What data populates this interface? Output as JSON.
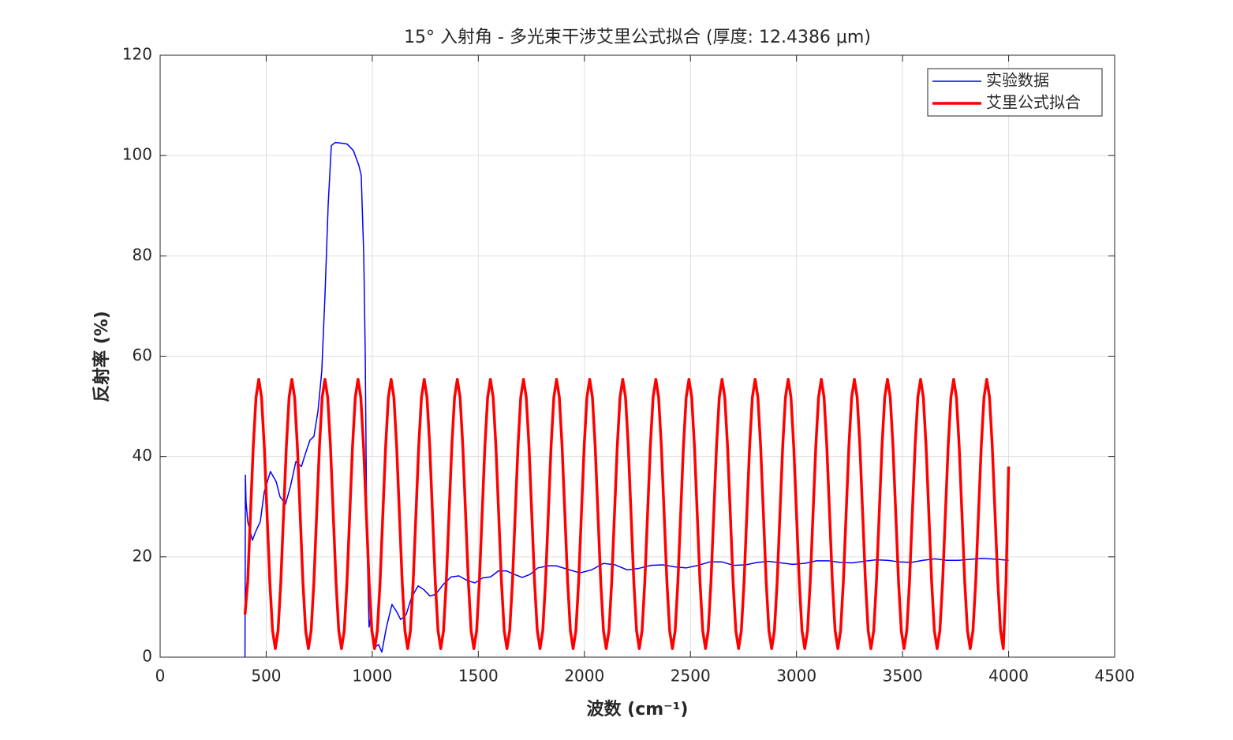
{
  "chart_data": {
    "type": "line",
    "title": "15° 入射角 - 多光束干涉艾里公式拟合 (厚度: 12.4386 μm)",
    "xlabel": "波数 (cm⁻¹)",
    "ylabel": "反射率 (%)",
    "xlim": [
      0,
      4500
    ],
    "xticks": [
      0,
      500,
      1000,
      1500,
      2000,
      2500,
      3000,
      3500,
      4000,
      4500
    ],
    "ylim": [
      0,
      120
    ],
    "yticks": [
      0,
      20,
      40,
      60,
      80,
      100,
      120
    ],
    "grid": true,
    "legend": "upper right",
    "series": [
      {
        "name": "实验数据",
        "color": "#0000ff",
        "width": 1.5,
        "x": [
          400,
          402,
          405,
          413,
          435,
          450,
          472,
          491,
          520,
          547,
          565,
          591,
          614,
          640,
          666,
          688,
          707,
          725,
          744,
          762,
          777,
          792,
          807,
          826,
          850,
          881,
          911,
          937,
          948,
          960,
          967,
          974,
          985,
          993,
          1012,
          1030,
          1045,
          1067,
          1093,
          1116,
          1134,
          1160,
          1186,
          1216,
          1242,
          1272,
          1298,
          1335,
          1372,
          1409,
          1447,
          1484,
          1521,
          1558,
          1595,
          1633,
          1670,
          1707,
          1744,
          1781,
          1830,
          1867,
          1923,
          1979,
          2034,
          2090,
          2146,
          2202,
          2257,
          2313,
          2369,
          2425,
          2481,
          2536,
          2592,
          2648,
          2704,
          2760,
          2815,
          2871,
          2927,
          2983,
          3038,
          3094,
          3150,
          3206,
          3262,
          3317,
          3373,
          3429,
          3485,
          3541,
          3596,
          3652,
          3708,
          3764,
          3819,
          3875,
          3950,
          4000
        ],
        "values": [
          0,
          36.3,
          31,
          27,
          23.3,
          25,
          27,
          33,
          37,
          35,
          32,
          30.5,
          34,
          39,
          38,
          41,
          43.3,
          44,
          49,
          57,
          72,
          90,
          102,
          102.6,
          102.5,
          102.3,
          101,
          98,
          96,
          80,
          60,
          25,
          6,
          8,
          2,
          2.5,
          1,
          6,
          10.5,
          9,
          7.5,
          8.5,
          12,
          14.2,
          13.5,
          12.2,
          12.5,
          14.5,
          16,
          16.2,
          15.3,
          14.8,
          15.8,
          16,
          17.2,
          17.2,
          16.5,
          15.9,
          16.5,
          17.8,
          18.2,
          18.2,
          17.5,
          16.8,
          17.4,
          18.7,
          18.4,
          17.4,
          17.7,
          18.3,
          18.4,
          18,
          17.8,
          18.3,
          19,
          19,
          18.3,
          18.4,
          18.9,
          19.1,
          18.8,
          18.5,
          18.7,
          19.2,
          19.2,
          18.9,
          18.8,
          19.1,
          19.4,
          19.3,
          19,
          18.9,
          19.3,
          19.6,
          19.3,
          19.3,
          19.5,
          19.7,
          19.5,
          19.3
        ]
      },
      {
        "name": "艾里公式拟合",
        "color": "#ff0000",
        "width": 3.5,
        "x": [
          400,
          413,
          426,
          439,
          452,
          465,
          478,
          491,
          504,
          517,
          530,
          543,
          556,
          569,
          582,
          595,
          608,
          621,
          634,
          647,
          660,
          673,
          686,
          699,
          712,
          725,
          738,
          751,
          764,
          777,
          790,
          803,
          816,
          829,
          842,
          855,
          868,
          881,
          894,
          907,
          920,
          933,
          946,
          959,
          972,
          985,
          998,
          1011,
          1024,
          1037,
          1050,
          1063,
          1076,
          1089,
          1102,
          1115,
          1128,
          1141,
          1154,
          1167,
          1180,
          1193,
          1206,
          1219,
          1232,
          1245,
          1258,
          1271,
          1284,
          1297,
          1310,
          1323,
          1336,
          1349,
          1362,
          1375,
          1388,
          1401,
          1414,
          1427,
          1440,
          1453,
          1466,
          1479,
          1492,
          1505,
          1518,
          1531,
          1544,
          1557,
          1570,
          1583,
          1596,
          1609,
          1622,
          1635,
          1648,
          1661,
          1674,
          1687,
          1700,
          1713,
          1726,
          1739,
          1752,
          1765,
          1778,
          1791,
          1804,
          1817,
          1830,
          1843,
          1856,
          1869,
          1882,
          1895,
          1908,
          1921,
          1934,
          1947,
          1960,
          1973,
          1986,
          1999,
          2012,
          2025,
          2038,
          2051,
          2064,
          2077,
          2090,
          2103,
          2116,
          2129,
          2142,
          2155,
          2168,
          2181,
          2194,
          2207,
          2220,
          2233,
          2246,
          2259,
          2272,
          2285,
          2298,
          2311,
          2324,
          2337,
          2350,
          2363,
          2376,
          2389,
          2402,
          2415,
          2428,
          2441,
          2454,
          2467,
          2480,
          2493,
          2506,
          2519,
          2532,
          2545,
          2558,
          2571,
          2584,
          2597,
          2610,
          2623,
          2636,
          2649,
          2662,
          2675,
          2688,
          2701,
          2714,
          2727,
          2740,
          2753,
          2766,
          2779,
          2792,
          2805,
          2818,
          2831,
          2844,
          2857,
          2870,
          2883,
          2896,
          2909,
          2922,
          2935,
          2948,
          2961,
          2974,
          2987,
          3000,
          3013,
          3026,
          3039,
          3052,
          3065,
          3078,
          3091,
          3104,
          3117,
          3130,
          3143,
          3156,
          3169,
          3182,
          3195,
          3208,
          3221,
          3234,
          3247,
          3260,
          3273,
          3286,
          3299,
          3312,
          3325,
          3338,
          3351,
          3364,
          3377,
          3390,
          3403,
          3416,
          3429,
          3442,
          3455,
          3468,
          3481,
          3494,
          3507,
          3520,
          3533,
          3546,
          3559,
          3572,
          3585,
          3598,
          3611,
          3624,
          3637,
          3650,
          3663,
          3676,
          3689,
          3702,
          3715,
          3728,
          3741,
          3754,
          3767,
          3780,
          3793,
          3806,
          3819,
          3832,
          3845,
          3858,
          3871,
          3884,
          3897,
          3910,
          3923,
          3936,
          3949,
          3962,
          3975,
          3988,
          4000
        ],
        "values": [
          8.5,
          15.1,
          28.6,
          42.0,
          51.8,
          55.4,
          51.8,
          42.0,
          28.6,
          15.1,
          5.3,
          1.7,
          5.3,
          15.1,
          28.6,
          42.0,
          51.8,
          55.4,
          51.8,
          42.0,
          28.6,
          15.1,
          5.3,
          1.7,
          5.3,
          15.1,
          28.6,
          42.0,
          51.8,
          55.4,
          51.8,
          42.0,
          28.6,
          15.1,
          5.3,
          1.7,
          5.3,
          15.1,
          28.6,
          42.0,
          51.8,
          55.4,
          51.8,
          42.0,
          28.6,
          15.1,
          5.3,
          1.7,
          5.3,
          15.1,
          28.6,
          42.0,
          51.8,
          55.4,
          51.8,
          42.0,
          28.6,
          15.1,
          5.3,
          1.7,
          5.3,
          15.1,
          28.6,
          42.0,
          51.8,
          55.4,
          51.8,
          42.0,
          28.6,
          15.1,
          5.3,
          1.7,
          5.3,
          15.1,
          28.6,
          42.0,
          51.8,
          55.4,
          51.8,
          42.0,
          28.6,
          15.1,
          5.3,
          1.7,
          5.3,
          15.1,
          28.6,
          42.0,
          51.8,
          55.4,
          51.8,
          42.0,
          28.6,
          15.1,
          5.3,
          1.7,
          5.3,
          15.1,
          28.6,
          42.0,
          51.8,
          55.4,
          51.8,
          42.0,
          28.6,
          15.1,
          5.3,
          1.7,
          5.3,
          15.1,
          28.6,
          42.0,
          51.8,
          55.4,
          51.8,
          42.0,
          28.6,
          15.1,
          5.3,
          1.7,
          5.3,
          15.1,
          28.6,
          42.0,
          51.8,
          55.4,
          51.8,
          42.0,
          28.6,
          15.1,
          5.3,
          1.7,
          5.3,
          15.1,
          28.6,
          42.0,
          51.8,
          55.4,
          51.8,
          42.0,
          28.6,
          15.1,
          5.3,
          1.7,
          5.3,
          15.1,
          28.6,
          42.0,
          51.8,
          55.4,
          51.8,
          42.0,
          28.6,
          15.1,
          5.3,
          1.7,
          5.3,
          15.1,
          28.6,
          42.0,
          51.8,
          55.4,
          51.8,
          42.0,
          28.6,
          15.1,
          5.3,
          1.7,
          5.3,
          15.1,
          28.6,
          42.0,
          51.8,
          55.4,
          51.8,
          42.0,
          28.6,
          15.1,
          5.3,
          1.7,
          5.3,
          15.1,
          28.6,
          42.0,
          51.8,
          55.4,
          51.8,
          42.0,
          28.6,
          15.1,
          5.3,
          1.7,
          5.3,
          15.1,
          28.6,
          42.0,
          51.8,
          55.4,
          51.8,
          42.0,
          28.6,
          15.1,
          5.3,
          1.7,
          5.3,
          15.1,
          28.6,
          42.0,
          51.8,
          55.4,
          51.8,
          42.0,
          28.6,
          15.1,
          5.3,
          1.7,
          5.3,
          15.1,
          28.6,
          42.0,
          51.8,
          55.4,
          51.8,
          42.0,
          28.6,
          15.1,
          5.3,
          1.7,
          5.3,
          15.1,
          28.6,
          42.0,
          51.8,
          55.4,
          51.8,
          42.0,
          28.6,
          15.1,
          5.3,
          1.7,
          5.3,
          15.1,
          28.6,
          42.0,
          51.8,
          55.4,
          51.8,
          42.0,
          28.6,
          15.1,
          5.3,
          1.7,
          5.3,
          15.1,
          28.6,
          42.0,
          51.8,
          55.4,
          51.8,
          42.0,
          28.6,
          15.1,
          5.3,
          1.7,
          5.3,
          15.1,
          28.6,
          42.0,
          51.8,
          55.4,
          51.8,
          42.0,
          28.6,
          15.1,
          5.3,
          1.7,
          15.1,
          38
        ]
      }
    ]
  }
}
